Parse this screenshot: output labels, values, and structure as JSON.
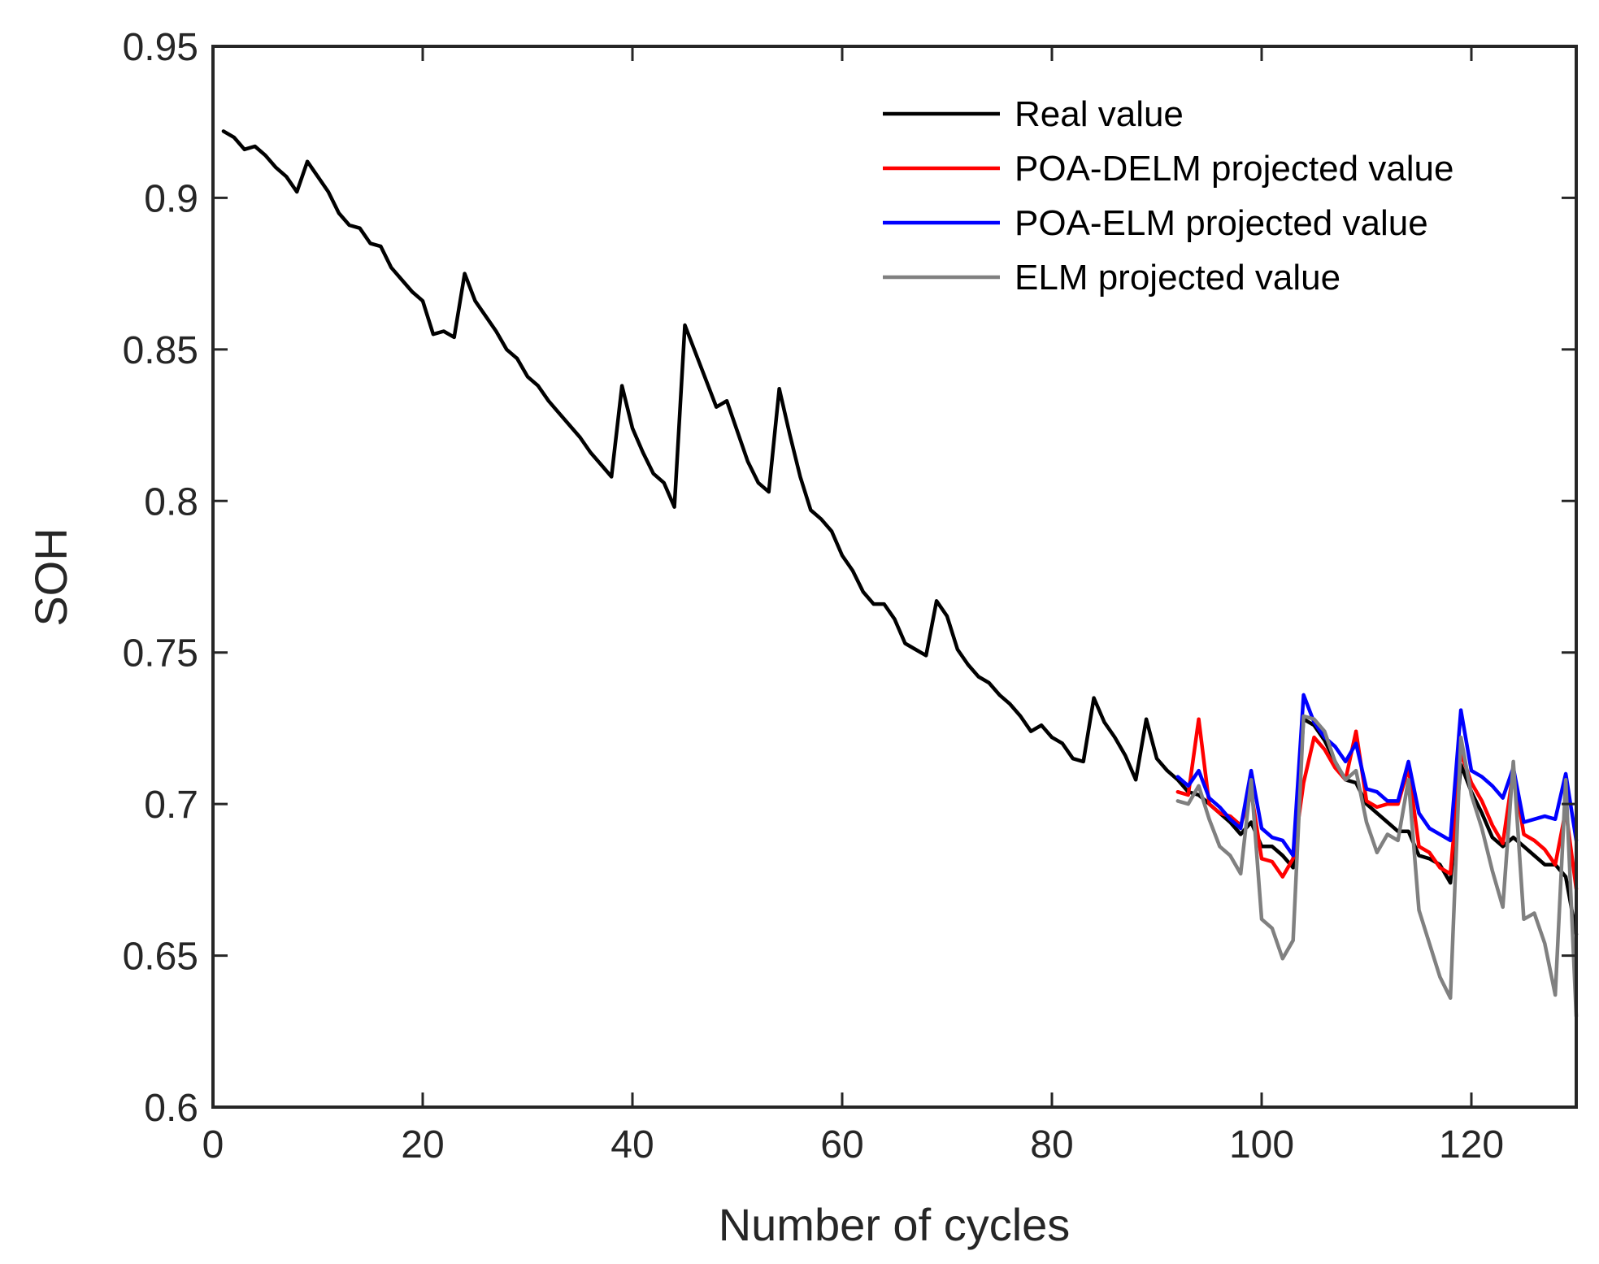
{
  "chart_data": {
    "type": "line",
    "title": "",
    "xlabel": "Number of cycles",
    "ylabel": "SOH",
    "xlim": [
      0,
      130
    ],
    "ylim": [
      0.6,
      0.95
    ],
    "xticks": [
      0,
      20,
      40,
      60,
      80,
      100,
      120
    ],
    "xtick_labels": [
      "0",
      "20",
      "40",
      "60",
      "80",
      "100",
      "120"
    ],
    "yticks": [
      0.6,
      0.65,
      0.7,
      0.75,
      0.8,
      0.85,
      0.9,
      0.95
    ],
    "ytick_labels": [
      "0.6",
      "0.65",
      "0.7",
      "0.75",
      "0.8",
      "0.85",
      "0.9",
      "0.95"
    ],
    "grid": false,
    "legend_position": "top-right",
    "series": [
      {
        "name": "Real value",
        "color": "#000000",
        "x": [
          1,
          2,
          3,
          4,
          5,
          6,
          7,
          8,
          9,
          10,
          11,
          12,
          13,
          14,
          15,
          16,
          17,
          18,
          19,
          20,
          21,
          22,
          23,
          24,
          25,
          26,
          27,
          28,
          29,
          30,
          31,
          32,
          33,
          34,
          35,
          36,
          37,
          38,
          39,
          40,
          41,
          42,
          43,
          44,
          45,
          46,
          47,
          48,
          49,
          50,
          51,
          52,
          53,
          54,
          55,
          56,
          57,
          58,
          59,
          60,
          61,
          62,
          63,
          64,
          65,
          66,
          67,
          68,
          69,
          70,
          71,
          72,
          73,
          74,
          75,
          76,
          77,
          78,
          79,
          80,
          81,
          82,
          83,
          84,
          85,
          86,
          87,
          88,
          89,
          90,
          91,
          92,
          93,
          94,
          95,
          96,
          97,
          98,
          99,
          100,
          101,
          102,
          103,
          104,
          105,
          106,
          107,
          108,
          109,
          110,
          111,
          112,
          113,
          114,
          115,
          116,
          117,
          118,
          119,
          120,
          121,
          122,
          123,
          124,
          125,
          126,
          127,
          128,
          129,
          130
        ],
        "values": [
          0.922,
          0.92,
          0.916,
          0.917,
          0.914,
          0.91,
          0.907,
          0.902,
          0.912,
          0.907,
          0.902,
          0.895,
          0.891,
          0.89,
          0.885,
          0.884,
          0.877,
          0.873,
          0.869,
          0.866,
          0.855,
          0.856,
          0.854,
          0.875,
          0.866,
          0.861,
          0.856,
          0.85,
          0.847,
          0.841,
          0.838,
          0.833,
          0.829,
          0.825,
          0.821,
          0.816,
          0.812,
          0.808,
          0.838,
          0.824,
          0.816,
          0.809,
          0.806,
          0.798,
          0.858,
          0.849,
          0.84,
          0.831,
          0.833,
          0.823,
          0.813,
          0.806,
          0.803,
          0.837,
          0.822,
          0.808,
          0.797,
          0.794,
          0.79,
          0.782,
          0.777,
          0.77,
          0.766,
          0.766,
          0.761,
          0.753,
          0.751,
          0.749,
          0.767,
          0.762,
          0.751,
          0.746,
          0.742,
          0.74,
          0.736,
          0.733,
          0.729,
          0.724,
          0.726,
          0.722,
          0.72,
          0.715,
          0.714,
          0.735,
          0.727,
          0.722,
          0.716,
          0.708,
          0.728,
          0.715,
          0.711,
          0.708,
          0.704,
          0.703,
          0.7,
          0.697,
          0.694,
          0.69,
          0.694,
          0.686,
          0.686,
          0.683,
          0.679,
          0.728,
          0.726,
          0.721,
          0.714,
          0.708,
          0.707,
          0.7,
          0.697,
          0.694,
          0.691,
          0.691,
          0.683,
          0.682,
          0.68,
          0.674,
          0.713,
          0.704,
          0.697,
          0.689,
          0.686,
          0.689,
          0.686,
          0.683,
          0.68,
          0.68,
          0.676,
          0.657
        ]
      },
      {
        "name": "POA-DELM projected value",
        "color": "#ff0000",
        "x": [
          92,
          93,
          94,
          95,
          96,
          97,
          98,
          99,
          100,
          101,
          102,
          103,
          104,
          105,
          106,
          107,
          108,
          109,
          110,
          111,
          112,
          113,
          114,
          115,
          116,
          117,
          118,
          119,
          120,
          121,
          122,
          123,
          124,
          125,
          126,
          127,
          128,
          129,
          130
        ],
        "values": [
          0.704,
          0.703,
          0.728,
          0.7,
          0.697,
          0.696,
          0.693,
          0.704,
          0.682,
          0.681,
          0.676,
          0.682,
          0.707,
          0.722,
          0.718,
          0.712,
          0.708,
          0.724,
          0.701,
          0.699,
          0.7,
          0.7,
          0.712,
          0.686,
          0.684,
          0.679,
          0.677,
          0.717,
          0.707,
          0.701,
          0.693,
          0.687,
          0.711,
          0.69,
          0.688,
          0.685,
          0.68,
          0.698,
          0.672
        ]
      },
      {
        "name": "POA-ELM projected value",
        "color": "#0000ff",
        "x": [
          92,
          93,
          94,
          95,
          96,
          97,
          98,
          99,
          100,
          101,
          102,
          103,
          104,
          105,
          106,
          107,
          108,
          109,
          110,
          111,
          112,
          113,
          114,
          115,
          116,
          117,
          118,
          119,
          120,
          121,
          122,
          123,
          124,
          125,
          126,
          127,
          128,
          129,
          130
        ],
        "values": [
          0.709,
          0.706,
          0.711,
          0.702,
          0.699,
          0.695,
          0.692,
          0.711,
          0.692,
          0.689,
          0.688,
          0.683,
          0.736,
          0.727,
          0.722,
          0.719,
          0.714,
          0.72,
          0.705,
          0.704,
          0.701,
          0.701,
          0.714,
          0.697,
          0.692,
          0.69,
          0.688,
          0.731,
          0.711,
          0.709,
          0.706,
          0.702,
          0.712,
          0.694,
          0.695,
          0.696,
          0.695,
          0.71,
          0.688
        ]
      },
      {
        "name": "ELM projected value",
        "color": "#808080",
        "x": [
          92,
          93,
          94,
          95,
          96,
          97,
          98,
          99,
          100,
          101,
          102,
          103,
          104,
          105,
          106,
          107,
          108,
          109,
          110,
          111,
          112,
          113,
          114,
          115,
          116,
          117,
          118,
          119,
          120,
          121,
          122,
          123,
          124,
          125,
          126,
          127,
          128,
          129,
          130
        ],
        "values": [
          0.701,
          0.7,
          0.706,
          0.695,
          0.686,
          0.683,
          0.677,
          0.708,
          0.662,
          0.659,
          0.649,
          0.655,
          0.729,
          0.728,
          0.724,
          0.714,
          0.708,
          0.711,
          0.694,
          0.684,
          0.69,
          0.688,
          0.708,
          0.665,
          0.654,
          0.643,
          0.636,
          0.722,
          0.703,
          0.692,
          0.678,
          0.666,
          0.714,
          0.662,
          0.664,
          0.654,
          0.637,
          0.708,
          0.63
        ]
      }
    ]
  }
}
